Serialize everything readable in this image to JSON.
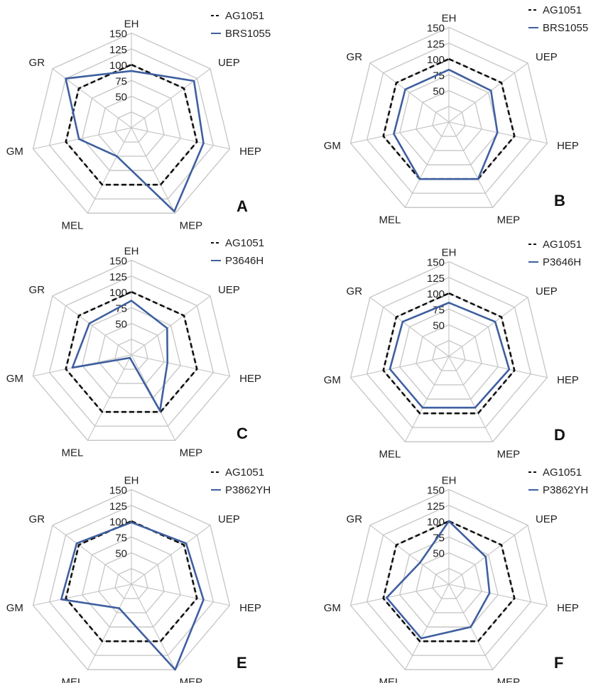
{
  "colors": {
    "reference": "#111111",
    "comparison": "#3f5fa0",
    "grid": "#c8c8c8",
    "spoke": "#c8c8c8"
  },
  "chart_data": [
    {
      "type": "radar",
      "panel": "A",
      "axes": [
        "EH",
        "UEP",
        "HEP",
        "MEP",
        "MEL",
        "GM",
        "GR"
      ],
      "ticks": [
        50,
        75,
        100,
        125,
        150
      ],
      "rlim": [
        0,
        150
      ],
      "legend": "top-right",
      "series": [
        {
          "name": "AG1051",
          "style": "dashed",
          "values": [
            100,
            100,
            100,
            100,
            100,
            100,
            100
          ]
        },
        {
          "name": "BRS1055",
          "style": "solid",
          "values": [
            90,
            119,
            110,
            147,
            50,
            80,
            125
          ]
        }
      ]
    },
    {
      "type": "radar",
      "panel": "B",
      "axes": [
        "EH",
        "UEP",
        "HEP",
        "MEP",
        "MEL",
        "GM",
        "GR"
      ],
      "ticks": [
        50,
        75,
        100,
        125,
        150
      ],
      "rlim": [
        0,
        150
      ],
      "legend": "top-right",
      "series": [
        {
          "name": "AG1051",
          "style": "dashed",
          "values": [
            100,
            100,
            100,
            100,
            100,
            100,
            100
          ]
        },
        {
          "name": "BRS1055",
          "style": "solid",
          "values": [
            83,
            80,
            74,
            100,
            100,
            84,
            83
          ]
        }
      ]
    },
    {
      "type": "radar",
      "panel": "C",
      "axes": [
        "EH",
        "UEP",
        "HEP",
        "MEP",
        "MEL",
        "GM",
        "GR"
      ],
      "ticks": [
        50,
        75,
        100,
        125,
        150
      ],
      "rlim": [
        0,
        150
      ],
      "legend": "top-right",
      "series": [
        {
          "name": "AG1051",
          "style": "dashed",
          "values": [
            100,
            100,
            100,
            100,
            100,
            100,
            100
          ]
        },
        {
          "name": "P3646H",
          "style": "solid",
          "values": [
            86,
            68,
            55,
            98,
            5,
            90,
            80
          ]
        }
      ]
    },
    {
      "type": "radar",
      "panel": "D",
      "axes": [
        "EH",
        "UEP",
        "HEP",
        "MEP",
        "MEL",
        "GM",
        "GR"
      ],
      "ticks": [
        50,
        75,
        100,
        125,
        150
      ],
      "rlim": [
        0,
        150
      ],
      "legend": "top-right",
      "series": [
        {
          "name": "AG1051",
          "style": "dashed",
          "values": [
            100,
            100,
            100,
            100,
            100,
            100,
            100
          ]
        },
        {
          "name": "P3646H",
          "style": "solid",
          "values": [
            85,
            88,
            92,
            90,
            90,
            90,
            88
          ]
        }
      ]
    },
    {
      "type": "radar",
      "panel": "E",
      "axes": [
        "EH",
        "UEP",
        "HEP",
        "MEP",
        "MEL",
        "GM",
        "GR"
      ],
      "ticks": [
        50,
        75,
        100,
        125,
        150
      ],
      "rlim": [
        0,
        150
      ],
      "legend": "top-right",
      "series": [
        {
          "name": "AG1051",
          "style": "dashed",
          "values": [
            100,
            100,
            100,
            100,
            100,
            100,
            100
          ]
        },
        {
          "name": "P3862YH",
          "style": "solid",
          "values": [
            98,
            104,
            110,
            150,
            42,
            107,
            104
          ]
        }
      ]
    },
    {
      "type": "radar",
      "panel": "F",
      "axes": [
        "EH",
        "UEP",
        "HEP",
        "MEP",
        "MEL",
        "GM",
        "GR"
      ],
      "ticks": [
        50,
        75,
        100,
        125,
        150
      ],
      "rlim": [
        0,
        150
      ],
      "legend": "top-right",
      "series": [
        {
          "name": "AG1051",
          "style": "dashed",
          "values": [
            100,
            100,
            100,
            100,
            100,
            100,
            100
          ]
        },
        {
          "name": "P3862YH",
          "style": "solid",
          "values": [
            100,
            70,
            62,
            75,
            95,
            95,
            55
          ]
        }
      ]
    }
  ]
}
